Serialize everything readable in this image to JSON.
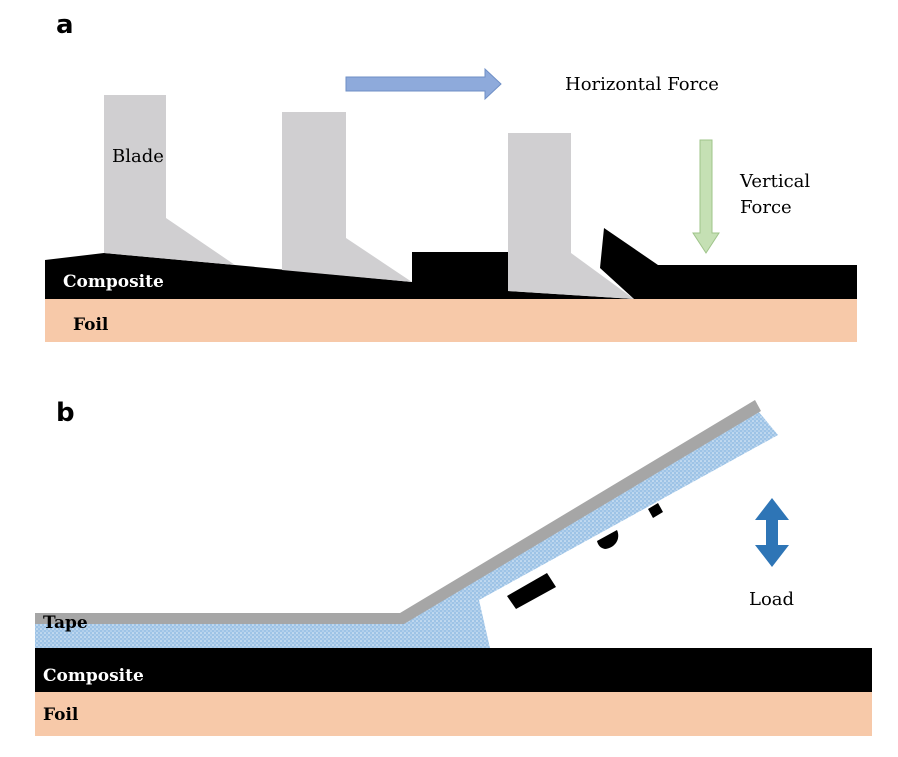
{
  "panel_a": {
    "letter": "a",
    "labels": {
      "blade": "Blade",
      "horizontal_force": "Horizontal Force",
      "vertical_force_line1": "Vertical",
      "vertical_force_line2": "Force",
      "composite": "Composite",
      "foil": "Foil"
    }
  },
  "panel_b": {
    "letter": "b",
    "labels": {
      "tape": "Tape",
      "load": "Load",
      "composite": "Composite",
      "foil": "Foil"
    }
  },
  "colors": {
    "foil": "#f7c9a9",
    "composite": "#000000",
    "blade": "#d0cfd1",
    "horizontal_arrow": "#8eaadb",
    "vertical_arrow": "#c5e0b4",
    "tape": "#a6a6a6",
    "adhesive": "#9dc3e6",
    "load_arrow": "#2e75b6"
  }
}
